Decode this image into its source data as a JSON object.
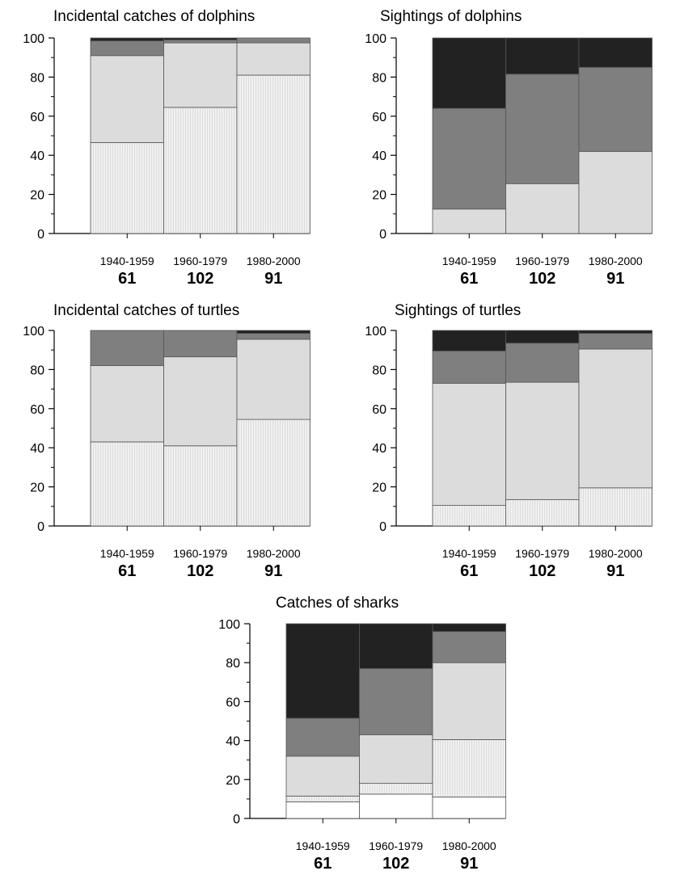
{
  "chart_data": [
    {
      "type": "bar",
      "stacked": true,
      "title": "Incidental catches of dolphins",
      "categories": [
        "1940-1959",
        "1960-1979",
        "1980-2000"
      ],
      "sample_sizes": [
        "61",
        "102",
        "91"
      ],
      "ylim": [
        0,
        100
      ],
      "yticks": [
        "0",
        "20",
        "40",
        "60",
        "80",
        "100"
      ],
      "grid": false,
      "series": [
        {
          "fill": "#f0f0f0",
          "values": [
            46.5,
            64.5,
            81
          ]
        },
        {
          "fill": "#dcdcdc",
          "values": [
            44.5,
            33,
            16.5
          ]
        },
        {
          "fill": "#7f7f7f",
          "values": [
            7.5,
            1.5,
            2.5
          ]
        },
        {
          "fill": "#222222",
          "values": [
            1.5,
            1,
            0
          ]
        }
      ]
    },
    {
      "type": "bar",
      "stacked": true,
      "title": "Sightings of dolphins",
      "categories": [
        "1940-1959",
        "1960-1979",
        "1980-2000"
      ],
      "sample_sizes": [
        "61",
        "102",
        "91"
      ],
      "ylim": [
        0,
        100
      ],
      "yticks": [
        "0",
        "20",
        "40",
        "60",
        "80",
        "100"
      ],
      "grid": false,
      "series": [
        {
          "fill": "#dcdcdc",
          "values": [
            12.5,
            25.5,
            42
          ]
        },
        {
          "fill": "#7f7f7f",
          "values": [
            51.5,
            56,
            43
          ]
        },
        {
          "fill": "#222222",
          "values": [
            36,
            18.5,
            15
          ]
        }
      ]
    },
    {
      "type": "bar",
      "stacked": true,
      "title": "Incidental catches of turtles",
      "categories": [
        "1940-1959",
        "1960-1979",
        "1980-2000"
      ],
      "sample_sizes": [
        "61",
        "102",
        "91"
      ],
      "ylim": [
        0,
        100
      ],
      "yticks": [
        "0",
        "20",
        "40",
        "60",
        "80",
        "100"
      ],
      "grid": false,
      "series": [
        {
          "fill": "#f0f0f0",
          "values": [
            43,
            41,
            54.5
          ]
        },
        {
          "fill": "#dcdcdc",
          "values": [
            39,
            45.5,
            41
          ]
        },
        {
          "fill": "#7f7f7f",
          "values": [
            18,
            13.5,
            3
          ]
        },
        {
          "fill": "#222222",
          "values": [
            0,
            0,
            1.5
          ]
        }
      ]
    },
    {
      "type": "bar",
      "stacked": true,
      "title": "Sightings of turtles",
      "categories": [
        "1940-1959",
        "1960-1979",
        "1980-2000"
      ],
      "sample_sizes": [
        "61",
        "102",
        "91"
      ],
      "ylim": [
        0,
        100
      ],
      "yticks": [
        "0",
        "20",
        "40",
        "60",
        "80",
        "100"
      ],
      "grid": false,
      "series": [
        {
          "fill": "#f0f0f0",
          "values": [
            10.5,
            13.5,
            19.5
          ]
        },
        {
          "fill": "#dcdcdc",
          "values": [
            62.5,
            60,
            71
          ]
        },
        {
          "fill": "#7f7f7f",
          "values": [
            16.5,
            20,
            8
          ]
        },
        {
          "fill": "#222222",
          "values": [
            10.5,
            6.5,
            1.5
          ]
        }
      ]
    },
    {
      "type": "bar",
      "stacked": true,
      "title": "Catches of sharks",
      "categories": [
        "1940-1959",
        "1960-1979",
        "1980-2000"
      ],
      "sample_sizes": [
        "61",
        "102",
        "91"
      ],
      "ylim": [
        0,
        100
      ],
      "yticks": [
        "0",
        "20",
        "40",
        "60",
        "80",
        "100"
      ],
      "grid": false,
      "series": [
        {
          "fill": "#ffffff",
          "values": [
            8.5,
            12.5,
            11
          ]
        },
        {
          "fill": "#f0f0f0",
          "values": [
            3,
            5.5,
            29.5
          ]
        },
        {
          "fill": "#dcdcdc",
          "values": [
            20.5,
            25,
            39.5
          ]
        },
        {
          "fill": "#7f7f7f",
          "values": [
            19.5,
            34,
            16
          ]
        },
        {
          "fill": "#222222",
          "values": [
            48.5,
            23,
            4
          ]
        }
      ]
    }
  ]
}
